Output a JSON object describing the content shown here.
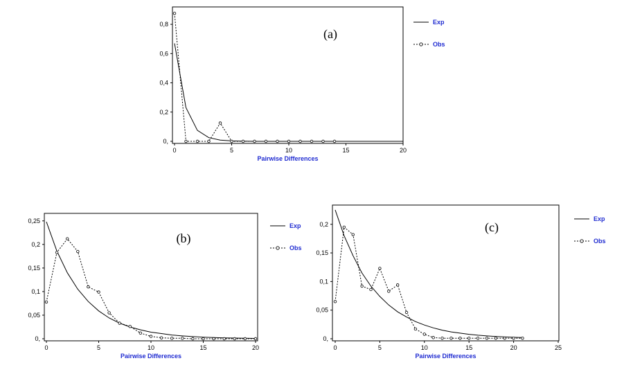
{
  "colors": {
    "label_blue": "#1f2bd1",
    "line": "#000000"
  },
  "chart_data": [
    {
      "type": "line",
      "panel_label": "(a)",
      "xlabel": "Pairwise Differences",
      "ylabel": "",
      "xlim": [
        0,
        20
      ],
      "ylim": [
        0,
        0.9
      ],
      "xticks": [
        0,
        5,
        10,
        15,
        20
      ],
      "xtick_labels": [
        "0",
        "5",
        "10",
        "15",
        "20"
      ],
      "yticks": [
        0,
        0.2,
        0.4,
        0.6,
        0.8
      ],
      "ytick_labels": [
        "0,",
        "0,2",
        "0,4",
        "0,6",
        "0,8"
      ],
      "grid": false,
      "legend_position": "right",
      "series": [
        {
          "name": "Exp",
          "style": "solid",
          "x": [
            0,
            1,
            2,
            3,
            4,
            5,
            6,
            7,
            8,
            9,
            10,
            11,
            12,
            13,
            14,
            15,
            16,
            17,
            18,
            19,
            20
          ],
          "y": [
            0.67,
            0.23,
            0.075,
            0.025,
            0.008,
            0.003,
            0.001,
            0,
            0,
            0,
            0,
            0,
            0,
            0,
            0,
            0,
            0,
            0,
            0,
            0,
            0
          ]
        },
        {
          "name": "Obs",
          "style": "dotted",
          "markers": true,
          "x": [
            0,
            1,
            2,
            3,
            4,
            5,
            6,
            7,
            8,
            9,
            10,
            11,
            12,
            13,
            14
          ],
          "y": [
            0.875,
            0,
            0,
            0,
            0.125,
            0,
            0,
            0,
            0,
            0,
            0,
            0,
            0,
            0,
            0
          ]
        }
      ]
    },
    {
      "type": "line",
      "panel_label": "(b)",
      "xlabel": "Pairwise Differences",
      "ylabel": "",
      "xlim": [
        0,
        20
      ],
      "ylim": [
        0,
        0.26
      ],
      "xticks": [
        0,
        5,
        10,
        15,
        20
      ],
      "xtick_labels": [
        "0",
        "5",
        "10",
        "15",
        "20"
      ],
      "yticks": [
        0,
        0.05,
        0.1,
        0.15,
        0.2,
        0.25
      ],
      "ytick_labels": [
        "0,",
        "0,05",
        "0,1",
        "0,15",
        "0,2",
        "0,25"
      ],
      "grid": false,
      "legend_position": "right",
      "series": [
        {
          "name": "Exp",
          "style": "solid",
          "x": [
            0,
            1,
            2,
            3,
            4,
            5,
            6,
            7,
            8,
            9,
            10,
            11,
            12,
            13,
            14,
            15,
            16,
            17,
            18,
            19,
            20
          ],
          "y": [
            0.248,
            0.186,
            0.14,
            0.105,
            0.079,
            0.059,
            0.044,
            0.033,
            0.025,
            0.019,
            0.014,
            0.011,
            0.008,
            0.006,
            0.0045,
            0.0034,
            0.0025,
            0.0019,
            0.0014,
            0.001,
            0.0008
          ]
        },
        {
          "name": "Obs",
          "style": "dotted",
          "markers": true,
          "x": [
            0,
            1,
            2,
            3,
            4,
            5,
            6,
            7,
            8,
            9,
            10,
            11,
            12,
            13,
            14,
            15,
            16,
            17,
            18,
            19,
            20
          ],
          "y": [
            0.078,
            0.183,
            0.212,
            0.185,
            0.11,
            0.099,
            0.055,
            0.033,
            0.026,
            0.012,
            0.005,
            0.002,
            0.001,
            0.001,
            0,
            0,
            0,
            0,
            0,
            0,
            0
          ]
        }
      ]
    },
    {
      "type": "line",
      "panel_label": "(c)",
      "xlabel": "Pairwise Differences",
      "ylabel": "",
      "xlim": [
        0,
        25
      ],
      "ylim": [
        0,
        0.23
      ],
      "xticks": [
        0,
        5,
        10,
        15,
        20,
        25
      ],
      "xtick_labels": [
        "0",
        "5",
        "10",
        "15",
        "20",
        "25"
      ],
      "yticks": [
        0,
        0.05,
        0.1,
        0.15,
        0.2
      ],
      "ytick_labels": [
        "0,",
        "0,05",
        "0,1",
        "0,15",
        "0,2"
      ],
      "grid": false,
      "legend_position": "right",
      "series": [
        {
          "name": "Exp",
          "style": "solid",
          "x": [
            0,
            1,
            2,
            3,
            4,
            5,
            6,
            7,
            8,
            9,
            10,
            11,
            12,
            13,
            14,
            15,
            16,
            17,
            18,
            19,
            20,
            21
          ],
          "y": [
            0.225,
            0.18,
            0.145,
            0.115,
            0.092,
            0.074,
            0.059,
            0.047,
            0.038,
            0.03,
            0.024,
            0.019,
            0.015,
            0.012,
            0.0098,
            0.0078,
            0.0062,
            0.005,
            0.004,
            0.0032,
            0.0025,
            0.002
          ]
        },
        {
          "name": "Obs",
          "style": "dotted",
          "markers": true,
          "x": [
            0,
            1,
            2,
            3,
            4,
            5,
            6,
            7,
            8,
            9,
            10,
            11,
            12,
            13,
            14,
            15,
            16,
            17,
            18,
            19,
            20,
            21
          ],
          "y": [
            0.065,
            0.195,
            0.182,
            0.092,
            0.086,
            0.123,
            0.083,
            0.094,
            0.046,
            0.017,
            0.008,
            0.002,
            0.001,
            0.001,
            0.001,
            0.001,
            0.001,
            0.001,
            0.001,
            0.001,
            0.001,
            0.001
          ]
        }
      ]
    }
  ]
}
